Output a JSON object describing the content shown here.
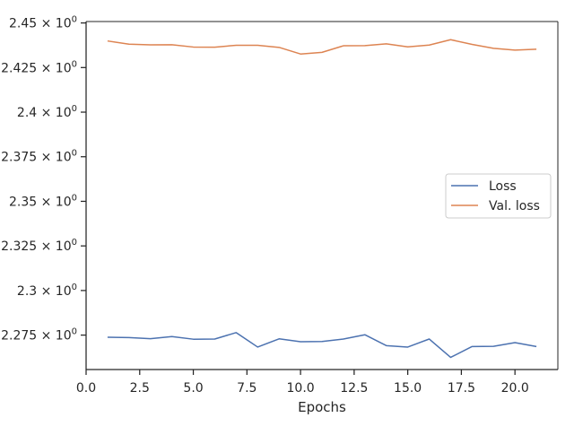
{
  "chart_data": {
    "type": "line",
    "title": "",
    "xlabel": "Epochs",
    "ylabel": "",
    "xlim": [
      0,
      22.0
    ],
    "ylim": [
      2.2557,
      2.4508
    ],
    "x_ticks": [
      0,
      2.5,
      5,
      7.5,
      10,
      12.5,
      15,
      17.5,
      20
    ],
    "x_tick_labels": [
      "0.0",
      "2.5",
      "5.0",
      "7.5",
      "10.0",
      "12.5",
      "15.0",
      "17.5",
      "20.0"
    ],
    "y_ticks": [
      2.275,
      2.3,
      2.325,
      2.35,
      2.375,
      2.4,
      2.425,
      2.45
    ],
    "y_tick_labels": [
      {
        "m": "2.275",
        "e": "0"
      },
      {
        "m": "2.3",
        "e": "0"
      },
      {
        "m": "2.325",
        "e": "0"
      },
      {
        "m": "2.35",
        "e": "0"
      },
      {
        "m": "2.375",
        "e": "0"
      },
      {
        "m": "2.4",
        "e": "0"
      },
      {
        "m": "2.425",
        "e": "0"
      },
      {
        "m": "2.45",
        "e": "0"
      }
    ],
    "legend_position": "center-right",
    "series": [
      {
        "name": "Loss",
        "color": "#4c72b0",
        "x": [
          1,
          2,
          3,
          4,
          5,
          6,
          7,
          8,
          9,
          10,
          11,
          12,
          13,
          14,
          15,
          16,
          17,
          18,
          19,
          20,
          21
        ],
        "y": [
          2.2738,
          2.2736,
          2.273,
          2.2742,
          2.2727,
          2.2728,
          2.2764,
          2.2683,
          2.2729,
          2.2713,
          2.2714,
          2.2728,
          2.2752,
          2.2691,
          2.2683,
          2.2728,
          2.2625,
          2.2686,
          2.2687,
          2.2708,
          2.2686
        ]
      },
      {
        "name": "Val. loss",
        "color": "#dd8452",
        "x": [
          1,
          2,
          3,
          4,
          5,
          6,
          7,
          8,
          9,
          10,
          11,
          12,
          13,
          14,
          15,
          16,
          17,
          18,
          19,
          20,
          21
        ],
        "y": [
          2.4399,
          2.4381,
          2.4377,
          2.4378,
          2.4365,
          2.4364,
          2.4375,
          2.4375,
          2.4363,
          2.4326,
          2.4335,
          2.4372,
          2.4373,
          2.4383,
          2.4366,
          2.4376,
          2.4406,
          2.438,
          2.4358,
          2.4348,
          2.4353
        ]
      }
    ]
  }
}
